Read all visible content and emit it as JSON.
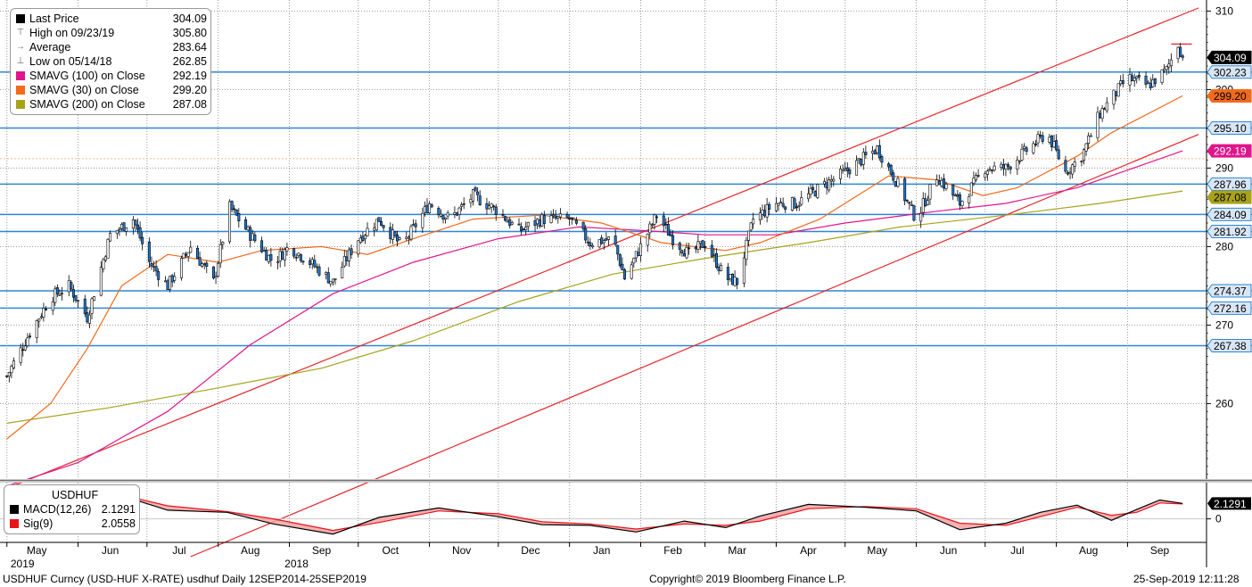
{
  "legend": {
    "rows": [
      {
        "icon": "square",
        "color": "#000000",
        "label": "Last Price",
        "value": "304.09"
      },
      {
        "icon": "high",
        "color": "#666666",
        "label": "High on 09/23/19",
        "value": "305.80"
      },
      {
        "icon": "avg",
        "color": "#666666",
        "label": "Average",
        "value": "283.64"
      },
      {
        "icon": "low",
        "color": "#666666",
        "label": "Low on 05/14/18",
        "value": "262.85"
      },
      {
        "icon": "square",
        "color": "#e0158c",
        "label": "SMAVG (100)  on Close",
        "value": "292.19"
      },
      {
        "icon": "square",
        "color": "#f26a1b",
        "label": "SMAVG (30)  on Close",
        "value": "299.20"
      },
      {
        "icon": "square",
        "color": "#a8a21b",
        "label": "SMAVG (200)  on Close",
        "value": "287.08"
      }
    ]
  },
  "macd_legend": {
    "title": "USDHUF",
    "rows": [
      {
        "color": "#000000",
        "label": "MACD(12,26)",
        "value": "2.1291"
      },
      {
        "color": "#e8141b",
        "label": "Sig(9)",
        "value": "2.0558"
      }
    ]
  },
  "chart_data": [
    {
      "type": "candlestick",
      "title": "",
      "y_ticks": [
        260,
        270,
        280,
        290,
        300,
        310
      ],
      "ylim": [
        250.5,
        310.5
      ],
      "x_months": [
        "May",
        "Jun",
        "Jul",
        "Aug",
        "Sep",
        "Oct",
        "Nov",
        "Dec",
        "Jan",
        "Feb",
        "Mar",
        "Apr",
        "May",
        "Jun",
        "Jul",
        "Aug",
        "Sep"
      ],
      "x_years": [
        {
          "label": "2018",
          "under": "Sep"
        },
        {
          "label": "2019",
          "under": "May"
        }
      ],
      "grid": true,
      "price_path": [
        [
          "2018-05-01",
          263.5
        ],
        [
          "2018-05-10",
          268.5
        ],
        [
          "2018-05-20",
          273.5
        ],
        [
          "2018-05-28",
          275.0
        ],
        [
          "2018-06-05",
          271.0
        ],
        [
          "2018-06-15",
          281.5
        ],
        [
          "2018-06-25",
          283.5
        ],
        [
          "2018-07-02",
          278.0
        ],
        [
          "2018-07-10",
          275.0
        ],
        [
          "2018-07-20",
          280.0
        ],
        [
          "2018-07-30",
          275.5
        ],
        [
          "2018-08-06",
          285.0
        ],
        [
          "2018-08-15",
          281.5
        ],
        [
          "2018-08-25",
          278.0
        ],
        [
          "2018-09-01",
          280.0
        ],
        [
          "2018-09-10",
          278.0
        ],
        [
          "2018-09-20",
          275.5
        ],
        [
          "2018-10-01",
          281.0
        ],
        [
          "2018-10-10",
          283.5
        ],
        [
          "2018-10-20",
          280.0
        ],
        [
          "2018-11-01",
          285.5
        ],
        [
          "2018-11-10",
          283.5
        ],
        [
          "2018-11-20",
          286.5
        ],
        [
          "2018-12-01",
          284.5
        ],
        [
          "2018-12-10",
          282.0
        ],
        [
          "2018-12-20",
          283.5
        ],
        [
          "2019-01-01",
          283.5
        ],
        [
          "2019-01-10",
          280.5
        ],
        [
          "2019-01-20",
          281.0
        ],
        [
          "2019-01-25",
          276.0
        ],
        [
          "2019-02-01",
          280.0
        ],
        [
          "2019-02-08",
          284.0
        ],
        [
          "2019-02-15",
          281.0
        ],
        [
          "2019-02-22",
          279.0
        ],
        [
          "2019-03-01",
          280.5
        ],
        [
          "2019-03-10",
          276.0
        ],
        [
          "2019-03-15",
          275.5
        ],
        [
          "2019-03-22",
          283.5
        ],
        [
          "2019-04-01",
          285.5
        ],
        [
          "2019-04-10",
          285.5
        ],
        [
          "2019-04-20",
          287.5
        ],
        [
          "2019-05-01",
          289.5
        ],
        [
          "2019-05-15",
          292.5
        ],
        [
          "2019-05-22",
          289.0
        ],
        [
          "2019-06-01",
          283.5
        ],
        [
          "2019-06-10",
          289.0
        ],
        [
          "2019-06-20",
          285.5
        ],
        [
          "2019-07-01",
          290.0
        ],
        [
          "2019-07-10",
          290.0
        ],
        [
          "2019-07-20",
          292.5
        ],
        [
          "2019-07-28",
          294.5
        ],
        [
          "2019-08-05",
          289.5
        ],
        [
          "2019-08-12",
          291.5
        ],
        [
          "2019-08-20",
          297.0
        ],
        [
          "2019-09-01",
          301.5
        ],
        [
          "2019-09-10",
          300.5
        ],
        [
          "2019-09-18",
          302.5
        ],
        [
          "2019-09-23",
          305.8
        ],
        [
          "2019-09-25",
          304.09
        ]
      ],
      "sma_30": [
        [
          "2018-05-01",
          255.5
        ],
        [
          "2018-05-20",
          260.0
        ],
        [
          "2018-06-05",
          267.0
        ],
        [
          "2018-06-20",
          275.0
        ],
        [
          "2018-07-10",
          279.0
        ],
        [
          "2018-08-01",
          278.0
        ],
        [
          "2018-08-20",
          279.5
        ],
        [
          "2018-09-15",
          280.0
        ],
        [
          "2018-10-05",
          279.0
        ],
        [
          "2018-10-25",
          281.0
        ],
        [
          "2018-11-20",
          283.5
        ],
        [
          "2018-12-20",
          284.0
        ],
        [
          "2019-01-15",
          283.0
        ],
        [
          "2019-02-10",
          280.5
        ],
        [
          "2019-03-10",
          279.5
        ],
        [
          "2019-03-25",
          280.5
        ],
        [
          "2019-04-20",
          283.5
        ],
        [
          "2019-05-20",
          289.0
        ],
        [
          "2019-06-10",
          288.5
        ],
        [
          "2019-06-30",
          286.5
        ],
        [
          "2019-07-15",
          287.5
        ],
        [
          "2019-08-10",
          291.5
        ],
        [
          "2019-08-25",
          294.5
        ],
        [
          "2019-09-25",
          299.2
        ]
      ],
      "sma_100": [
        [
          "2018-05-01",
          249.5
        ],
        [
          "2018-06-01",
          252.5
        ],
        [
          "2018-07-10",
          259.0
        ],
        [
          "2018-08-15",
          267.5
        ],
        [
          "2018-09-20",
          274.0
        ],
        [
          "2018-10-25",
          278.0
        ],
        [
          "2018-12-01",
          281.0
        ],
        [
          "2019-01-05",
          282.5
        ],
        [
          "2019-02-05",
          282.0
        ],
        [
          "2019-03-01",
          281.5
        ],
        [
          "2019-04-01",
          281.5
        ],
        [
          "2019-05-01",
          283.0
        ],
        [
          "2019-06-10",
          284.5
        ],
        [
          "2019-07-10",
          285.5
        ],
        [
          "2019-08-10",
          287.5
        ],
        [
          "2019-09-25",
          292.19
        ]
      ],
      "sma_200": [
        [
          "2018-05-01",
          257.5
        ],
        [
          "2018-06-15",
          259.5
        ],
        [
          "2018-08-01",
          262.0
        ],
        [
          "2018-09-15",
          264.5
        ],
        [
          "2018-10-25",
          268.0
        ],
        [
          "2018-12-10",
          273.0
        ],
        [
          "2019-01-20",
          276.5
        ],
        [
          "2019-03-01",
          278.5
        ],
        [
          "2019-04-15",
          280.5
        ],
        [
          "2019-05-25",
          282.5
        ],
        [
          "2019-07-10",
          284.0
        ],
        [
          "2019-08-20",
          285.5
        ],
        [
          "2019-09-25",
          287.08
        ]
      ],
      "horizontal_levels": [
        302.23,
        295.1,
        287.96,
        284.09,
        281.92,
        274.37,
        272.16,
        267.38
      ],
      "right_labels": [
        {
          "text": "304.09",
          "value": 304.09,
          "bg": "#000000",
          "fg": "#ffffff"
        },
        {
          "text": "302.23",
          "value": 302.23,
          "bg": "#d9e6f5",
          "fg": "#000000"
        },
        {
          "text": "299.20",
          "value": 299.2,
          "bg": "#f26a1b",
          "fg": "#000000"
        },
        {
          "text": "295.10",
          "value": 295.1,
          "bg": "#d9e6f5",
          "fg": "#000000"
        },
        {
          "text": "292.19",
          "value": 292.19,
          "bg": "#e0158c",
          "fg": "#ffffff"
        },
        {
          "text": "287.96",
          "value": 287.96,
          "bg": "#d9e6f5",
          "fg": "#000000"
        },
        {
          "text": "287.08",
          "value": 287.08,
          "bg": "#a8a21b",
          "fg": "#000000"
        },
        {
          "text": "284.09",
          "value": 284.09,
          "bg": "#d9e6f5",
          "fg": "#000000"
        },
        {
          "text": "281.92",
          "value": 281.92,
          "bg": "#d9e6f5",
          "fg": "#000000"
        },
        {
          "text": "274.37",
          "value": 274.37,
          "bg": "#d9e6f5",
          "fg": "#000000"
        },
        {
          "text": "272.16",
          "value": 272.16,
          "bg": "#d9e6f5",
          "fg": "#000000"
        },
        {
          "text": "267.38",
          "value": 267.38,
          "bg": "#d9e6f5",
          "fg": "#000000"
        }
      ],
      "trend_lines": [
        {
          "from": [
            "2018-05-01",
            249.2
          ],
          "to": [
            "2019-10-02",
            310.4
          ]
        },
        {
          "from": [
            "2018-07-20",
            240.5
          ],
          "to": [
            "2019-10-02",
            294.3
          ]
        }
      ]
    },
    {
      "type": "line",
      "title": "USDHUF",
      "y_ticks": [
        0
      ],
      "series": [
        {
          "name": "MACD(12,26)",
          "color": "#000000",
          "points": [
            [
              "2018-05-01",
              2.4
            ],
            [
              "2018-05-20",
              3.9
            ],
            [
              "2018-06-05",
              3.8
            ],
            [
              "2018-06-20",
              3.2
            ],
            [
              "2018-07-10",
              1.2
            ],
            [
              "2018-08-05",
              0.9
            ],
            [
              "2018-08-25",
              -0.7
            ],
            [
              "2018-09-20",
              -2.1
            ],
            [
              "2018-10-10",
              0.2
            ],
            [
              "2018-11-05",
              1.5
            ],
            [
              "2018-12-01",
              0.3
            ],
            [
              "2018-12-20",
              -0.8
            ],
            [
              "2019-01-10",
              -0.9
            ],
            [
              "2019-01-30",
              -1.8
            ],
            [
              "2019-02-20",
              -0.3
            ],
            [
              "2019-03-10",
              -1.2
            ],
            [
              "2019-03-25",
              0.4
            ],
            [
              "2019-04-15",
              2.0
            ],
            [
              "2019-05-10",
              1.6
            ],
            [
              "2019-06-01",
              1.1
            ],
            [
              "2019-06-20",
              -1.5
            ],
            [
              "2019-07-10",
              -0.6
            ],
            [
              "2019-07-25",
              0.9
            ],
            [
              "2019-08-10",
              1.9
            ],
            [
              "2019-08-25",
              -0.2
            ],
            [
              "2019-09-05",
              1.3
            ],
            [
              "2019-09-15",
              2.6
            ],
            [
              "2019-09-25",
              2.1291
            ]
          ]
        },
        {
          "name": "Sig(9)",
          "color": "#e8141b",
          "points": [
            [
              "2018-05-01",
              2.0
            ],
            [
              "2018-05-20",
              3.4
            ],
            [
              "2018-06-05",
              3.6
            ],
            [
              "2018-06-20",
              3.3
            ],
            [
              "2018-07-10",
              1.8
            ],
            [
              "2018-08-05",
              1.0
            ],
            [
              "2018-08-25",
              0.0
            ],
            [
              "2018-09-20",
              -1.6
            ],
            [
              "2018-10-10",
              -0.5
            ],
            [
              "2018-11-05",
              1.1
            ],
            [
              "2018-12-01",
              0.7
            ],
            [
              "2018-12-20",
              -0.4
            ],
            [
              "2019-01-10",
              -0.7
            ],
            [
              "2019-01-30",
              -1.4
            ],
            [
              "2019-02-20",
              -0.7
            ],
            [
              "2019-03-10",
              -0.9
            ],
            [
              "2019-03-25",
              -0.3
            ],
            [
              "2019-04-15",
              1.4
            ],
            [
              "2019-05-10",
              1.7
            ],
            [
              "2019-06-01",
              1.4
            ],
            [
              "2019-06-20",
              -0.6
            ],
            [
              "2019-07-10",
              -0.9
            ],
            [
              "2019-07-25",
              0.3
            ],
            [
              "2019-08-10",
              1.6
            ],
            [
              "2019-08-25",
              0.5
            ],
            [
              "2019-09-05",
              0.9
            ],
            [
              "2019-09-15",
              2.2
            ],
            [
              "2019-09-25",
              2.0558
            ]
          ]
        }
      ],
      "right_labels": [
        {
          "text": "2.1291",
          "value": 2.1291,
          "bg": "#000000",
          "fg": "#ffffff"
        }
      ]
    }
  ],
  "footer": {
    "left": "USDHUF Curncy (USD-HUF X-RATE) usdhuf  Daily 12SEP2014-25SEP2019",
    "center": "Copyright© 2019 Bloomberg Finance L.P.",
    "right": "25-Sep-2019 12:11:28"
  }
}
